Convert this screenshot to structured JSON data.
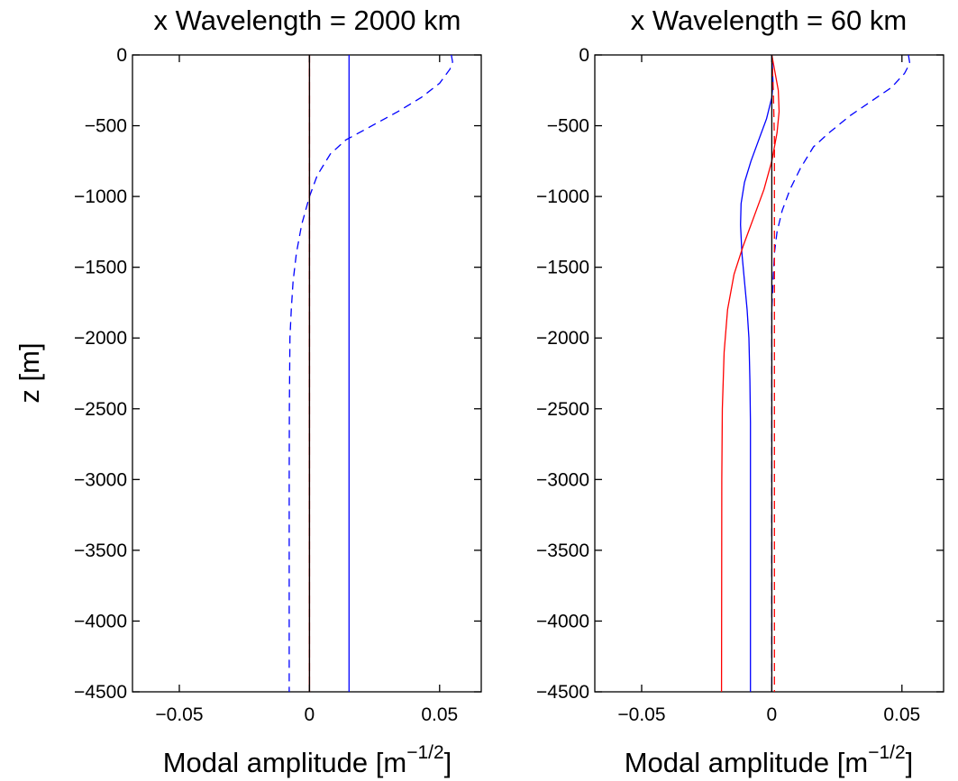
{
  "chart_data": [
    {
      "type": "line",
      "title": "x Wavelength = 2000 km",
      "xlabel": "Modal amplitude [m",
      "xlabel_sup": "−1/2",
      "xlabel_close": "]",
      "ylabel": "z [m]",
      "xlim": [
        -0.068,
        0.066
      ],
      "ylim": [
        -4500,
        0
      ],
      "xticks": [
        -0.05,
        0,
        0.05
      ],
      "xtick_labels": [
        "−0.05",
        "0",
        "0.05"
      ],
      "yticks": [
        0,
        -500,
        -1000,
        -1500,
        -2000,
        -2500,
        -3000,
        -3500,
        -4000,
        -4500
      ],
      "ytick_labels": [
        "0",
        "−500",
        "−1000",
        "−1500",
        "−2000",
        "−2500",
        "−3000",
        "−3500",
        "−4000",
        "−4500"
      ],
      "grid": false,
      "series": [
        {
          "color": "#0000ff",
          "style": "solid",
          "points": [
            [
              0.0152,
              0
            ],
            [
              0.0152,
              -4500
            ]
          ]
        },
        {
          "color": "#0000ff",
          "style": "dashed",
          "points": [
            [
              0.0545,
              0
            ],
            [
              0.055,
              -50
            ],
            [
              0.054,
              -100
            ],
            [
              0.05,
              -200
            ],
            [
              0.043,
              -300
            ],
            [
              0.034,
              -400
            ],
            [
              0.024,
              -500
            ],
            [
              0.014,
              -600
            ],
            [
              0.008,
              -700
            ],
            [
              0.003,
              -850
            ],
            [
              0.0,
              -1000
            ],
            [
              -0.003,
              -1200
            ],
            [
              -0.005,
              -1400
            ],
            [
              -0.0063,
              -1600
            ],
            [
              -0.007,
              -1800
            ],
            [
              -0.0075,
              -2000
            ],
            [
              -0.0077,
              -2500
            ],
            [
              -0.0078,
              -3000
            ],
            [
              -0.0078,
              -4500
            ]
          ]
        },
        {
          "color": "#ff0000",
          "style": "solid",
          "points": [
            [
              0.0,
              0
            ],
            [
              0.0,
              -4500
            ]
          ]
        },
        {
          "color": "#ff0000",
          "style": "dashed",
          "points": [
            [
              0.0,
              0
            ],
            [
              0.0,
              -4500
            ]
          ]
        },
        {
          "color": "#000000",
          "style": "solid",
          "points": [
            [
              0.0,
              0
            ],
            [
              0.0,
              -4500
            ]
          ]
        }
      ]
    },
    {
      "type": "line",
      "title": "x Wavelength = 60 km",
      "xlabel": "Modal amplitude [m",
      "xlabel_sup": "−1/2",
      "xlabel_close": "]",
      "ylabel": "",
      "xlim": [
        -0.068,
        0.066
      ],
      "ylim": [
        -4500,
        0
      ],
      "xticks": [
        -0.05,
        0,
        0.05
      ],
      "xtick_labels": [
        "−0.05",
        "0",
        "0.05"
      ],
      "yticks": [
        0,
        -500,
        -1000,
        -1500,
        -2000,
        -2500,
        -3000,
        -3500,
        -4000,
        -4500
      ],
      "ytick_labels": [
        "0",
        "−500",
        "−1000",
        "−1500",
        "−2000",
        "−2500",
        "−3000",
        "−3500",
        "−4000",
        "−4500"
      ],
      "grid": false,
      "series": [
        {
          "color": "#0000ff",
          "style": "solid",
          "points": [
            [
              0.0,
              0
            ],
            [
              0.0005,
              -200
            ],
            [
              0.0,
              -300
            ],
            [
              -0.002,
              -450
            ],
            [
              -0.005,
              -600
            ],
            [
              -0.008,
              -750
            ],
            [
              -0.0105,
              -900
            ],
            [
              -0.0118,
              -1050
            ],
            [
              -0.012,
              -1200
            ],
            [
              -0.0115,
              -1400
            ],
            [
              -0.0105,
              -1600
            ],
            [
              -0.0095,
              -1800
            ],
            [
              -0.0088,
              -2000
            ],
            [
              -0.0084,
              -2300
            ],
            [
              -0.0082,
              -2600
            ],
            [
              -0.0082,
              -3000
            ],
            [
              -0.0082,
              -4500
            ]
          ]
        },
        {
          "color": "#0000ff",
          "style": "dashed",
          "points": [
            [
              0.0525,
              0
            ],
            [
              0.053,
              -60
            ],
            [
              0.051,
              -130
            ],
            [
              0.046,
              -230
            ],
            [
              0.038,
              -330
            ],
            [
              0.03,
              -430
            ],
            [
              0.022,
              -550
            ],
            [
              0.016,
              -650
            ],
            [
              0.011,
              -800
            ],
            [
              0.007,
              -950
            ],
            [
              0.004,
              -1100
            ],
            [
              0.002,
              -1250
            ],
            [
              0.001,
              -1400
            ],
            [
              0.0005,
              -1600
            ],
            [
              0.0,
              -1800
            ],
            [
              0.0,
              -4500
            ]
          ]
        },
        {
          "color": "#ff0000",
          "style": "solid",
          "points": [
            [
              0.0,
              0
            ],
            [
              0.001,
              -100
            ],
            [
              0.0025,
              -250
            ],
            [
              0.0028,
              -400
            ],
            [
              0.002,
              -550
            ],
            [
              0.0,
              -750
            ],
            [
              -0.003,
              -950
            ],
            [
              -0.007,
              -1150
            ],
            [
              -0.011,
              -1350
            ],
            [
              -0.0145,
              -1550
            ],
            [
              -0.017,
              -1800
            ],
            [
              -0.0183,
              -2100
            ],
            [
              -0.019,
              -2500
            ],
            [
              -0.0192,
              -3000
            ],
            [
              -0.0193,
              -4500
            ]
          ]
        },
        {
          "color": "#ff0000",
          "style": "dashed",
          "points": [
            [
              0.0,
              0
            ],
            [
              0.0006,
              -250
            ],
            [
              0.001,
              -600
            ],
            [
              0.001,
              -1000
            ],
            [
              0.001,
              -4500
            ]
          ]
        },
        {
          "color": "#000000",
          "style": "solid",
          "points": [
            [
              0.0,
              0
            ],
            [
              0.0,
              -4500
            ]
          ]
        }
      ]
    }
  ]
}
